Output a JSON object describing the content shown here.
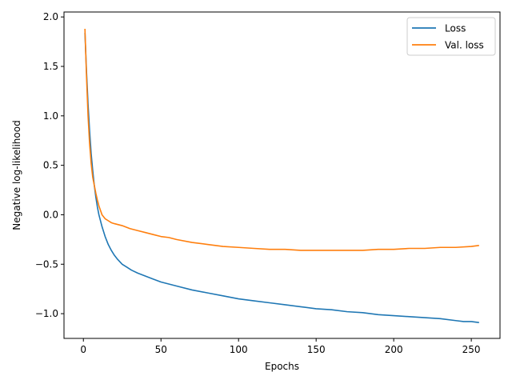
{
  "chart_data": {
    "type": "line",
    "title": "",
    "xlabel": "Epochs",
    "ylabel": "Negative log-likelihood",
    "xlim": [
      -12.5,
      268.5
    ],
    "ylim": [
      -1.25,
      2.05
    ],
    "xticks": [
      0,
      50,
      100,
      150,
      200,
      250
    ],
    "xtick_labels": [
      "0",
      "50",
      "100",
      "150",
      "200",
      "250"
    ],
    "yticks": [
      -1.0,
      -0.5,
      0.0,
      0.5,
      1.0,
      1.5,
      2.0
    ],
    "ytick_labels": [
      "−1.0",
      "−0.5",
      "0.0",
      "0.5",
      "1.0",
      "1.5",
      "2.0"
    ],
    "grid": false,
    "legend_position": "top-right",
    "series": [
      {
        "name": "Loss",
        "color": "#1f77b4",
        "x": [
          1,
          2,
          3,
          4,
          5,
          6,
          7,
          8,
          9,
          10,
          12,
          14,
          16,
          18,
          20,
          22,
          25,
          28,
          31,
          35,
          40,
          45,
          50,
          55,
          60,
          70,
          80,
          90,
          100,
          110,
          120,
          130,
          140,
          150,
          160,
          170,
          180,
          190,
          200,
          210,
          220,
          230,
          240,
          245,
          250,
          255
        ],
        "y": [
          1.84,
          1.45,
          1.12,
          0.85,
          0.62,
          0.45,
          0.3,
          0.18,
          0.08,
          0.0,
          -0.12,
          -0.22,
          -0.3,
          -0.36,
          -0.41,
          -0.45,
          -0.5,
          -0.53,
          -0.56,
          -0.59,
          -0.62,
          -0.65,
          -0.68,
          -0.7,
          -0.72,
          -0.76,
          -0.79,
          -0.82,
          -0.85,
          -0.87,
          -0.89,
          -0.91,
          -0.93,
          -0.95,
          -0.96,
          -0.98,
          -0.99,
          -1.01,
          -1.02,
          -1.03,
          -1.04,
          -1.05,
          -1.07,
          -1.08,
          -1.08,
          -1.09
        ]
      },
      {
        "name": "Val. loss",
        "color": "#ff7f0e",
        "x": [
          1,
          2,
          3,
          4,
          5,
          6,
          7,
          8,
          9,
          10,
          12,
          14,
          16,
          18,
          20,
          25,
          30,
          35,
          40,
          45,
          50,
          55,
          60,
          70,
          80,
          90,
          100,
          110,
          120,
          130,
          140,
          150,
          160,
          170,
          180,
          190,
          200,
          210,
          220,
          230,
          240,
          250,
          255
        ],
        "y": [
          1.88,
          1.4,
          1.0,
          0.72,
          0.52,
          0.38,
          0.3,
          0.22,
          0.15,
          0.09,
          0.0,
          -0.04,
          -0.06,
          -0.08,
          -0.09,
          -0.11,
          -0.14,
          -0.16,
          -0.18,
          -0.2,
          -0.22,
          -0.23,
          -0.25,
          -0.28,
          -0.3,
          -0.32,
          -0.33,
          -0.34,
          -0.35,
          -0.35,
          -0.36,
          -0.36,
          -0.36,
          -0.36,
          -0.36,
          -0.35,
          -0.35,
          -0.34,
          -0.34,
          -0.33,
          -0.33,
          -0.32,
          -0.31
        ]
      }
    ]
  }
}
